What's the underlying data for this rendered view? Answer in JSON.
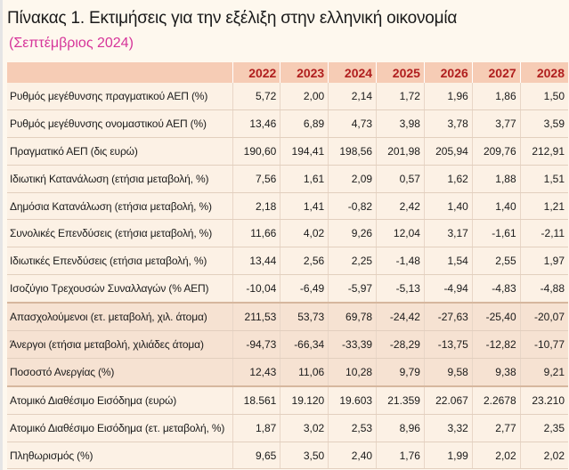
{
  "title": "Πίνακας 1. Εκτιμήσεις για την εξέλιξη στην ελληνική οικονομία",
  "subtitle": "(Σεπτέμβριος 2024)",
  "colors": {
    "header_bg": "#f6ccb5",
    "header_text": "#b01e1e",
    "subtitle": "#d6359a",
    "band_light": "#fcf1e5",
    "band_dark": "#f6e2d2"
  },
  "table": {
    "years": [
      "2022",
      "2023",
      "2024",
      "2025",
      "2026",
      "2027",
      "2028"
    ],
    "rows": [
      {
        "label": "Ρυθμός μεγέθυνσης πραγματικού ΑΕΠ  (%)",
        "values": [
          "5,72",
          "2,00",
          "2,14",
          "1,72",
          "1,96",
          "1,86",
          "1,50"
        ]
      },
      {
        "label": "Ρυθμός μεγέθυνσης ονομαστικού ΑΕΠ  (%)",
        "values": [
          "13,46",
          "6,89",
          "4,73",
          "3,98",
          "3,78",
          "3,77",
          "3,59"
        ]
      },
      {
        "label": "Πραγματικό ΑΕΠ (δις ευρώ)",
        "values": [
          "190,60",
          "194,41",
          "198,56",
          "201,98",
          "205,94",
          "209,76",
          "212,91"
        ]
      },
      {
        "label": "Ιδιωτική Κατανάλωση (ετήσια μεταβολή, %)",
        "values": [
          "7,56",
          "1,61",
          "2,09",
          "0,57",
          "1,62",
          "1,88",
          "1,51"
        ]
      },
      {
        "label": "Δημόσια Κατανάλωση (ετήσια μεταβολή, %)",
        "values": [
          "2,18",
          "1,41",
          "-0,82",
          "2,42",
          "1,40",
          "1,40",
          "1,21"
        ]
      },
      {
        "label": "Συνολικές Επενδύσεις (ετήσια μεταβολή, %)",
        "values": [
          "11,66",
          "4,02",
          "9,26",
          "12,04",
          "3,17",
          "-1,61",
          "-2,11"
        ]
      },
      {
        "label": "Ιδιωτικές Επενδύσεις (ετήσια μεταβολή, %)",
        "values": [
          "13,44",
          "2,56",
          "2,25",
          "-1,48",
          "1,54",
          "2,55",
          "1,97"
        ]
      },
      {
        "label": "Ισοζύγιο Τρεχουσών Συναλλαγών (% ΑΕΠ)",
        "values": [
          "-10,04",
          "-6,49",
          "-5,97",
          "-5,13",
          "-4,94",
          "-4,83",
          "-4,88"
        ]
      },
      {
        "label": "Απασχολούμενοι (ετ. μεταβολή, χιλ. άτομα)",
        "values": [
          "211,53",
          "53,73",
          "69,78",
          "-24,42",
          "-27,63",
          "-25,40",
          "-20,07"
        ]
      },
      {
        "label": "Άνεργοι (ετήσια μεταβολή, χιλιάδες άτομα)",
        "values": [
          "-94,73",
          "-66,34",
          "-33,39",
          "-28,29",
          "-13,75",
          "-12,82",
          "-10,77"
        ]
      },
      {
        "label": "Ποσοστό Ανεργίας (%)",
        "values": [
          "12,43",
          "11,06",
          "10,28",
          "9,79",
          "9,58",
          "9,38",
          "9,21"
        ]
      },
      {
        "label": "Ατομικό Διαθέσιμο Εισόδημα (ευρώ)",
        "values": [
          "18.561",
          "19.120",
          "19.603",
          "21.359",
          "22.067",
          "2.2678",
          "23.210"
        ]
      },
      {
        "label": "Ατομικό Διαθέσιμο Εισόδημα (ετ. μεταβολή, %)",
        "values": [
          "1,87",
          "3,02",
          "2,53",
          "8,96",
          "3,32",
          "2,77",
          "2,35"
        ]
      },
      {
        "label": "Πληθωρισμός (%)",
        "values": [
          "9,65",
          "3,50",
          "2,40",
          "1,76",
          "1,99",
          "2,02",
          "2,02"
        ]
      }
    ]
  }
}
